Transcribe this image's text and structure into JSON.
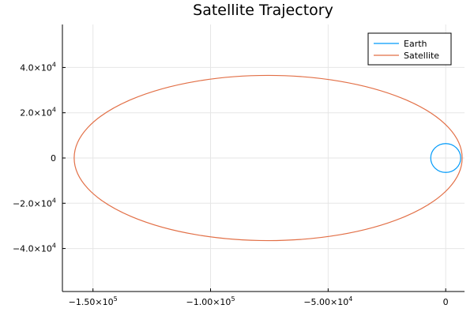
{
  "chart_data": {
    "type": "line",
    "title": "Satellite Trajectory",
    "xlabel": "",
    "ylabel": "",
    "xlim": [
      -163000,
      8000
    ],
    "ylim": [
      -59000,
      59000
    ],
    "grid": true,
    "legend_position": "top-right",
    "x_ticks": [
      {
        "value": -150000,
        "mantissa": "−1.50×10",
        "exp": "5"
      },
      {
        "value": -100000,
        "mantissa": "−1.00×10",
        "exp": "5"
      },
      {
        "value": -50000,
        "mantissa": "−5.00×10",
        "exp": "4"
      },
      {
        "value": 0,
        "mantissa": "0",
        "exp": ""
      }
    ],
    "y_ticks": [
      {
        "value": 40000,
        "mantissa": "4.0×10",
        "exp": "4"
      },
      {
        "value": 20000,
        "mantissa": "2.0×10",
        "exp": "4"
      },
      {
        "value": 0,
        "mantissa": "0",
        "exp": ""
      },
      {
        "value": -20000,
        "mantissa": "−2.0×10",
        "exp": "4"
      },
      {
        "value": -40000,
        "mantissa": "−4.0×10",
        "exp": "4"
      }
    ],
    "series": [
      {
        "name": "Earth",
        "color": "#009AFA",
        "shape": "circle",
        "center": [
          0,
          0
        ],
        "radius": 6371
      },
      {
        "name": "Satellite",
        "color": "#E26F46",
        "shape": "ellipse",
        "center": [
          -75500,
          0
        ],
        "semi_major_axis": 82500,
        "semi_minor_axis": 36500
      }
    ]
  }
}
